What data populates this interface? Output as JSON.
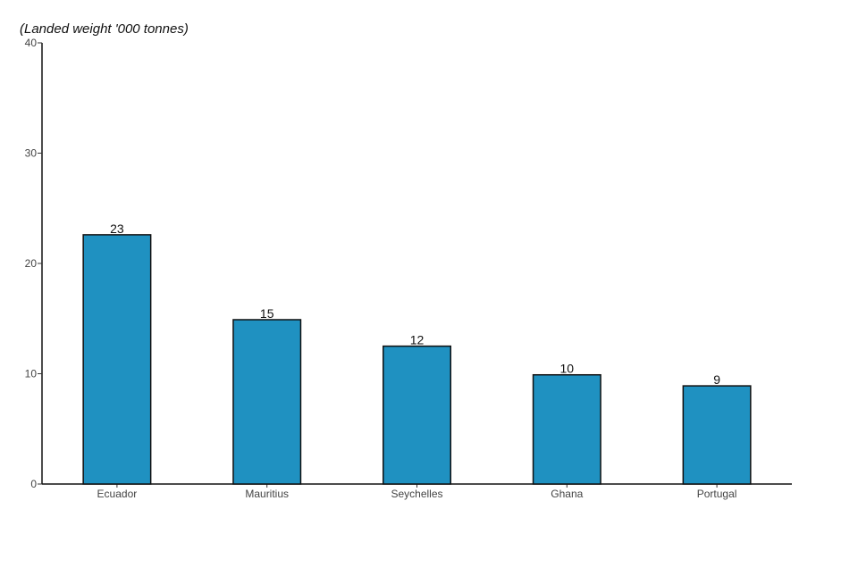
{
  "chart_data": {
    "type": "bar",
    "title": "",
    "ylabel": "(Landed weight '000 tonnes)",
    "xlabel": "",
    "categories": [
      "Ecuador",
      "Mauritius",
      "Seychelles",
      "Ghana",
      "Portugal"
    ],
    "values": [
      22.6,
      14.9,
      12.5,
      9.9,
      8.9
    ],
    "data_labels": [
      "23",
      "15",
      "12",
      "10",
      "9"
    ],
    "ylim": [
      0,
      40
    ],
    "yticks": [
      0,
      10,
      20,
      30,
      40
    ],
    "grid": false,
    "legend": "none",
    "bar_color": "#1f91c1",
    "bar_edge_color": "#111111"
  }
}
